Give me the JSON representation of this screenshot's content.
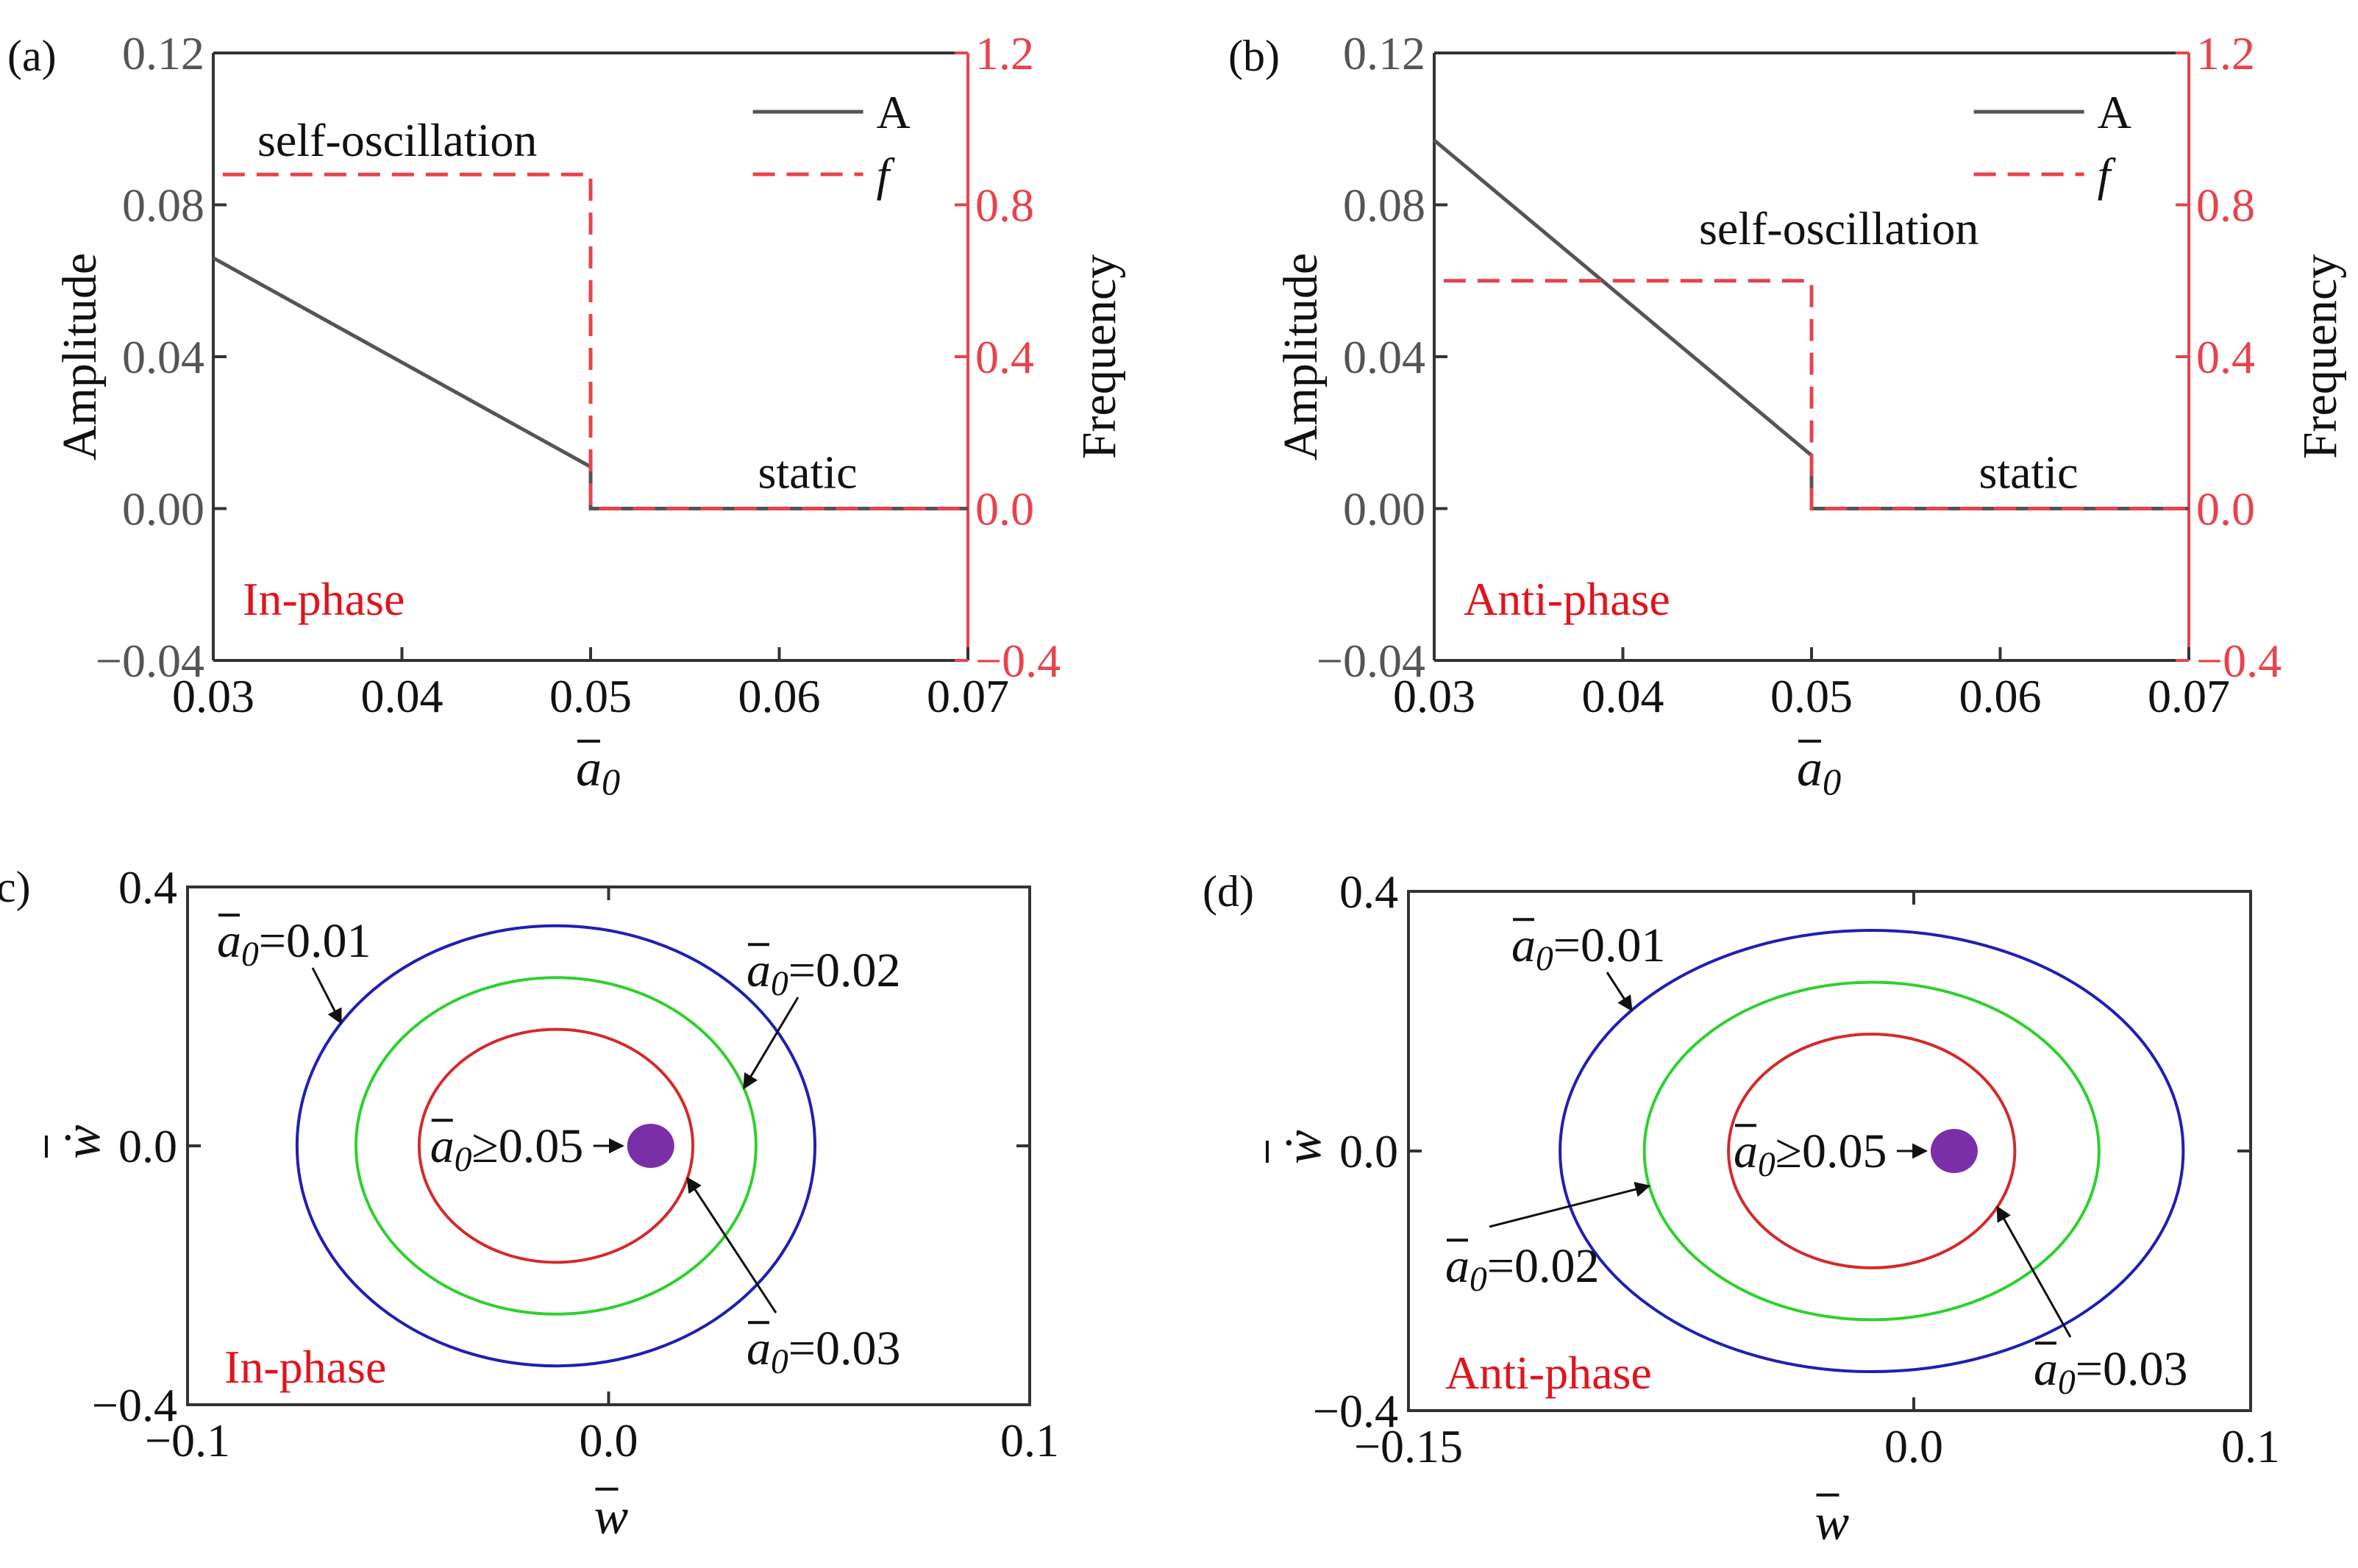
{
  "colors": {
    "amplitude": "#555555",
    "frequency": "#e8434b",
    "phase_text": "#e0141e",
    "orbit_001": "#1f1fb4",
    "orbit_002": "#2ed12e",
    "orbit_003": "#d42a2a",
    "fixed_point": "#7a2fa8",
    "axes": "#333333"
  },
  "chart_data": [
    {
      "panel": "(a)",
      "type": "line",
      "phase_label": "In-phase",
      "xlabel_symbol": "a",
      "xlabel_sub": "0",
      "ylabel_left": "Amplitude",
      "ylabel_right": "Frequency",
      "xlim": [
        0.03,
        0.07
      ],
      "ylim_left": [
        -0.04,
        0.12
      ],
      "ylim_right": [
        -0.4,
        1.2
      ],
      "xticks": [
        "0.03",
        "0.04",
        "0.05",
        "0.06",
        "0.07"
      ],
      "yticks_left": [
        "0.12",
        "0.08",
        "0.04",
        "0.00",
        "−0.04"
      ],
      "yticks_right": [
        "1.2",
        "0.8",
        "0.4",
        "0.0",
        "−0.4"
      ],
      "legend": {
        "position": "top-right",
        "entries": [
          "A",
          "f"
        ]
      },
      "annotations": {
        "upper": "self-oscillation",
        "lower": "static"
      },
      "series": [
        {
          "name": "A",
          "axis": "left",
          "style": "solid",
          "x": [
            0.03,
            0.05,
            0.05,
            0.07
          ],
          "y": [
            0.066,
            0.011,
            0.0,
            0.0
          ]
        },
        {
          "name": "f",
          "axis": "right",
          "style": "dashed",
          "x": [
            0.0305,
            0.05,
            0.05,
            0.07
          ],
          "y": [
            0.88,
            0.88,
            0.0,
            0.0
          ]
        }
      ]
    },
    {
      "panel": "(b)",
      "type": "line",
      "phase_label": "Anti-phase",
      "xlabel_symbol": "a",
      "xlabel_sub": "0",
      "ylabel_left": "Amplitude",
      "ylabel_right": "Frequency",
      "xlim": [
        0.03,
        0.07
      ],
      "ylim_left": [
        -0.04,
        0.12
      ],
      "ylim_right": [
        -0.4,
        1.2
      ],
      "xticks": [
        "0.03",
        "0.04",
        "0.05",
        "0.06",
        "0.07"
      ],
      "yticks_left": [
        "0.12",
        "0.08",
        "0.04",
        "0.00",
        "−0.04"
      ],
      "yticks_right": [
        "1.2",
        "0.8",
        "0.4",
        "0.0",
        "−0.4"
      ],
      "legend": {
        "position": "top-right",
        "entries": [
          "A",
          "f"
        ]
      },
      "annotations": {
        "upper": "self-oscillation",
        "lower": "static"
      },
      "series": [
        {
          "name": "A",
          "axis": "left",
          "style": "solid",
          "x": [
            0.03,
            0.05,
            0.05,
            0.07
          ],
          "y": [
            0.097,
            0.014,
            0.0,
            0.0
          ]
        },
        {
          "name": "f",
          "axis": "right",
          "style": "dashed",
          "x": [
            0.0305,
            0.05,
            0.05,
            0.07
          ],
          "y": [
            0.6,
            0.6,
            0.0,
            0.0
          ]
        }
      ]
    },
    {
      "panel": "(c)",
      "type": "line",
      "phase_label": "In-phase",
      "xlabel_symbol": "w",
      "ylabel_symbol": "ẇ",
      "xlim": [
        -0.1,
        0.1
      ],
      "ylim": [
        -0.4,
        0.4
      ],
      "xticks": [
        "−0.1",
        "0.0",
        "0.1"
      ],
      "yticks": [
        "0.4",
        "0.0",
        "−0.4"
      ],
      "limit_cycles": [
        {
          "label_symbol": "a",
          "label_sub": "0",
          "label_value": "=0.01",
          "color_key": "orbit_001",
          "cx": -0.0125,
          "cy": 0.0,
          "rx": 0.0615,
          "ry": 0.34
        },
        {
          "label_symbol": "a",
          "label_sub": "0",
          "label_value": "=0.02",
          "color_key": "orbit_002",
          "cx": -0.0125,
          "cy": 0.0,
          "rx": 0.0475,
          "ry": 0.26
        },
        {
          "label_symbol": "a",
          "label_sub": "0",
          "label_value": "=0.03",
          "color_key": "orbit_003",
          "cx": -0.0125,
          "cy": 0.0,
          "rx": 0.0325,
          "ry": 0.18
        }
      ],
      "fixed_point": {
        "label_symbol": "a",
        "label_sub": "0",
        "label_value": "≥0.05",
        "x": 0.01,
        "y": 0.0
      }
    },
    {
      "panel": "(d)",
      "type": "line",
      "phase_label": "Anti-phase",
      "xlabel_symbol": "w",
      "ylabel_symbol": "ẇ",
      "xlim": [
        -0.15,
        0.1
      ],
      "ylim": [
        -0.4,
        0.4
      ],
      "xticks": [
        "−0.15",
        "0.0",
        "0.1"
      ],
      "yticks": [
        "0.4",
        "0.0",
        "−0.4"
      ],
      "limit_cycles": [
        {
          "label_symbol": "a",
          "label_sub": "0",
          "label_value": "=0.01",
          "color_key": "orbit_001",
          "cx": -0.0125,
          "cy": 0.0,
          "rx": 0.0925,
          "ry": 0.34
        },
        {
          "label_symbol": "a",
          "label_sub": "0",
          "label_value": "=0.02",
          "color_key": "orbit_002",
          "cx": -0.0125,
          "cy": 0.0,
          "rx": 0.0675,
          "ry": 0.26
        },
        {
          "label_symbol": "a",
          "label_sub": "0",
          "label_value": "=0.03",
          "color_key": "orbit_003",
          "cx": -0.0125,
          "cy": 0.0,
          "rx": 0.0425,
          "ry": 0.18
        }
      ],
      "fixed_point": {
        "label_symbol": "a",
        "label_sub": "0",
        "label_value": "≥0.05",
        "x": 0.012,
        "y": 0.0
      }
    }
  ]
}
